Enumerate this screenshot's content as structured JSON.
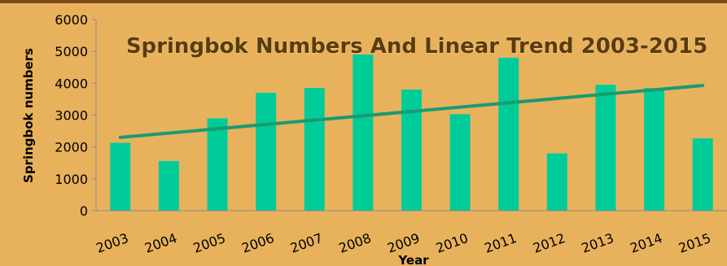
{
  "chart_data": {
    "type": "bar",
    "title": "Springbok Numbers And Linear Trend 2003-2015",
    "xlabel": "Year",
    "ylabel": "Springbok numbers",
    "ylim": [
      0,
      6000
    ],
    "yticks": [
      0,
      1000,
      2000,
      3000,
      4000,
      5000,
      6000
    ],
    "categories": [
      "2003",
      "2004",
      "2005",
      "2006",
      "2007",
      "2008",
      "2009",
      "2010",
      "2011",
      "2012",
      "2013",
      "2014",
      "2015"
    ],
    "series": [
      {
        "values": [
          2130,
          1560,
          2900,
          3700,
          3850,
          4900,
          3800,
          3030,
          4800,
          1800,
          3950,
          3850,
          2270
        ],
        "color": "#00cc99"
      }
    ],
    "trend": {
      "type": "linear",
      "start": 2300,
      "end": 3930,
      "color": "#1a9a70"
    },
    "grid": false,
    "legend": "none"
  }
}
